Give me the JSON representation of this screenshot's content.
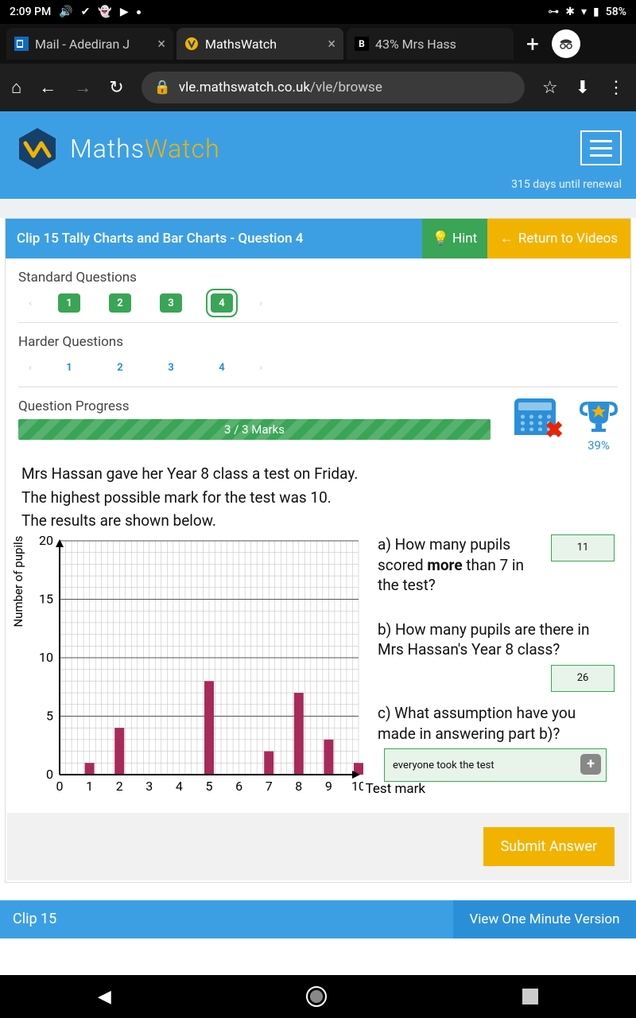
{
  "statusbar": {
    "time": "2:09 PM",
    "battery": "58%"
  },
  "tabs": [
    {
      "title": "Mail - Adediran J",
      "active": false
    },
    {
      "title": "MathsWatch",
      "active": true
    },
    {
      "title": "43% Mrs Hass",
      "active": false
    }
  ],
  "url": {
    "host": "vle.mathswatch.co.uk",
    "path": "/vle/browse"
  },
  "header": {
    "brand1": "Maths",
    "brand2": "Watch",
    "renewal": "315 days until renewal"
  },
  "titlebar": {
    "title": "Clip 15 Tally Charts and Bar Charts - Question 4",
    "hint": "Hint",
    "return": "Return to Videos"
  },
  "sections": {
    "standard_label": "Standard Questions",
    "harder_label": "Harder Questions",
    "standard": [
      "1",
      "2",
      "3",
      "4"
    ],
    "harder": [
      "1",
      "2",
      "3",
      "4"
    ]
  },
  "progress": {
    "label": "Question Progress",
    "text": "3 / 3 Marks",
    "trophy_pct": "39%"
  },
  "question": {
    "intro1": "Mrs Hassan gave her Year 8 class a test on Friday.",
    "intro2": "The highest possible mark for the test was 10.",
    "intro3": "The results are shown below.",
    "parts": {
      "a_pre": "a) How many pupils scored ",
      "a_bold": "more",
      "a_post": " than 7 in the test?",
      "a_ans": "11",
      "b": "b) How many pupils are there in Mrs Hassan's Year 8 class?",
      "b_ans": "26",
      "c": "c) What assumption have you made in answering part b)?",
      "c_ans": "everyone took the test"
    }
  },
  "chart": {
    "type": "bar",
    "ylabel": "Number of pupils",
    "xlabel": "Test mark",
    "yticks": [
      "0",
      "5",
      "10",
      "15",
      "20"
    ],
    "xticks": [
      "0",
      "1",
      "2",
      "3",
      "4",
      "5",
      "6",
      "7",
      "8",
      "9",
      "10"
    ],
    "ylim": [
      0,
      20
    ],
    "values": {
      "1": 1,
      "2": 4,
      "5": 8,
      "7": 2,
      "8": 7,
      "9": 3,
      "10": 1
    },
    "bar_color": "#a72a5a",
    "grid_major": "#555",
    "grid_minor": "#bbb",
    "bg": "#ffffff"
  },
  "submit": "Submit Answer",
  "footer": {
    "left": "Clip 15",
    "right": "View One Minute Version"
  }
}
